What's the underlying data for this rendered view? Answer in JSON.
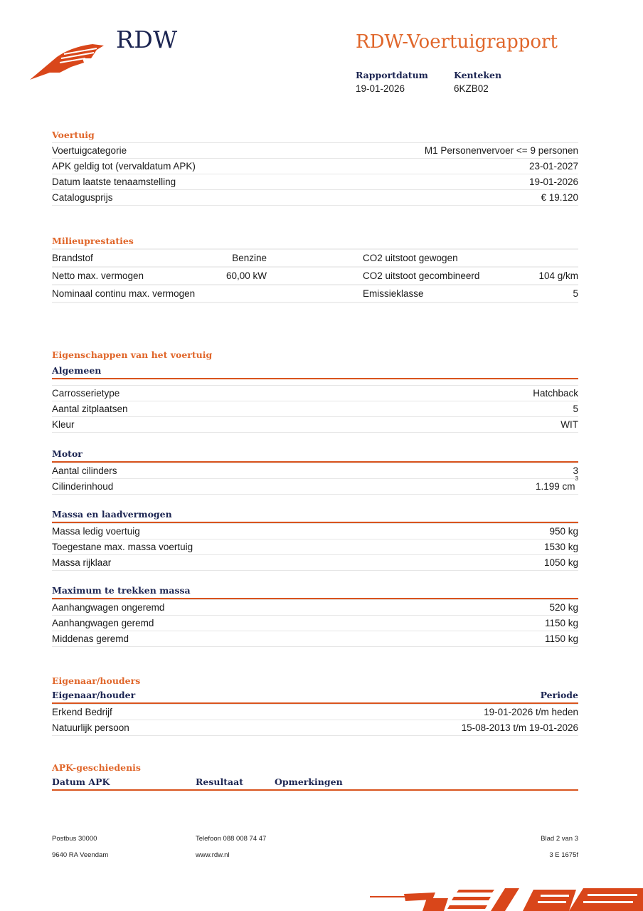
{
  "header": {
    "logo_text": "RDW",
    "title": "RDW-Voertuigrapport",
    "report_date_label": "Rapportdatum",
    "report_date": "19-01-2026",
    "plate_label": "Kenteken",
    "plate": "6KZB02"
  },
  "colors": {
    "accent": "#e0662a",
    "navy": "#1c2552",
    "rule": "#d9541e"
  },
  "voertuig": {
    "title": "Voertuig",
    "rows": [
      {
        "label": "Voertuigcategorie",
        "value": "M1 Personenvervoer <= 9 personen"
      },
      {
        "label": "APK geldig tot (vervaldatum APK)",
        "value": "23-01-2027"
      },
      {
        "label": "Datum laatste tenaamstelling",
        "value": "19-01-2026"
      },
      {
        "label": "Catalogusprijs",
        "value": "€ 19.120"
      }
    ]
  },
  "milieu": {
    "title": "Milieuprestaties",
    "rows": [
      {
        "label": "Brandstof",
        "value": "Benzine",
        "label2": "CO2 uitstoot gewogen",
        "value2": ""
      },
      {
        "label": "Netto max. vermogen",
        "value": "60,00 kW",
        "label2": "CO2 uitstoot gecombineerd",
        "value2": "104 g/km"
      },
      {
        "label": "Nominaal continu max. vermogen",
        "value": "",
        "label2": "Emissieklasse",
        "value2": "5"
      }
    ]
  },
  "eigenschappen": {
    "title": "Eigenschappen van het voertuig",
    "groups": [
      {
        "title": "Algemeen",
        "rows": [
          {
            "label": "Carrosserietype",
            "value": "Hatchback"
          },
          {
            "label": "Aantal zitplaatsen",
            "value": "5"
          },
          {
            "label": "Kleur",
            "value": "WIT"
          }
        ]
      },
      {
        "title": "Motor",
        "rows": [
          {
            "label": "Aantal cilinders",
            "value": "3"
          },
          {
            "label": "Cilinderinhoud",
            "value": "1.199 cm",
            "sup": "3"
          }
        ]
      },
      {
        "title": "Massa en laadvermogen",
        "rows": [
          {
            "label": "Massa ledig voertuig",
            "value": "950 kg"
          },
          {
            "label": "Toegestane max. massa voertuig",
            "value": "1530 kg"
          },
          {
            "label": "Massa rijklaar",
            "value": "1050 kg"
          }
        ]
      },
      {
        "title": "Maximum te trekken massa",
        "rows": [
          {
            "label": "Aanhangwagen ongeremd",
            "value": "520 kg"
          },
          {
            "label": "Aanhangwagen geremd",
            "value": "1150 kg"
          },
          {
            "label": "Middenas geremd",
            "value": "1150 kg"
          }
        ]
      }
    ]
  },
  "eigenaren": {
    "title": "Eigenaar/houders",
    "col_owner": "Eigenaar/houder",
    "col_period": "Periode",
    "rows": [
      {
        "label": "Erkend Bedrijf",
        "value": "19-01-2026 t/m heden"
      },
      {
        "label": "Natuurlijk persoon",
        "value": "15-08-2013 t/m 19-01-2026"
      }
    ]
  },
  "apk": {
    "title": "APK-geschiedenis",
    "columns": [
      "Datum APK",
      "Resultaat",
      "Opmerkingen"
    ]
  },
  "footer": {
    "address1": "Postbus 30000",
    "address2": "9640 RA Veendam",
    "phone": "Telefoon 088 008 74 47",
    "web": "www.rdw.nl",
    "page": "Blad 2 van 3",
    "code": "3 E 1675f"
  }
}
